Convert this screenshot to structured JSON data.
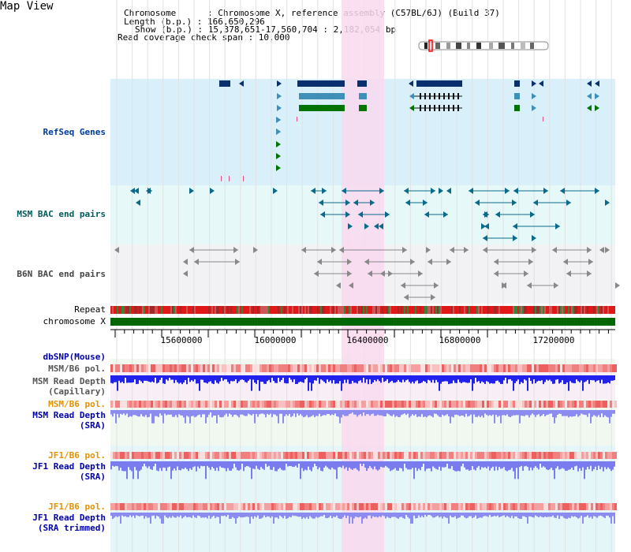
{
  "title": "Map View",
  "header": {
    "chromosome_line": "Chromosome      : Chromosome X, reference assembly (C57BL/6J) (Build 37)",
    "length_line": "Length (b.p.) : 166,650,296",
    "show_line": "Show (b.p.) : 15,378,651-17,560,704 : 2,182,054 bp",
    "span_line": "Read coverage check span : 10,000"
  },
  "tracks": {
    "refseq": "RefSeq Genes",
    "msm_bac": "MSM BAC end pairs",
    "b6n_bac": "B6N BAC end pairs",
    "repeat": "Repeat",
    "chromosome": "chromosome X",
    "dbsnp": "dbSNP(Mouse)",
    "msm_pol_1": "MSM/B6 pol.",
    "msm_depth_cap": "MSM Read Depth\n(Capillary)",
    "msm_pol_2": "MSM/B6 pol.",
    "msm_depth_sra": "MSM Read Depth\n(SRA)",
    "jf1_pol_1": "JF1/B6 pol.",
    "jf1_depth_sra": "JF1 Read Depth\n(SRA)",
    "jf1_pol_2": "JF1/B6 pol.",
    "jf1_depth_trim": "JF1 Read Depth\n(SRA trimmed)"
  },
  "axis": {
    "ticks": [
      "15600000",
      "16000000",
      "16400000",
      "16800000",
      "17200000"
    ]
  },
  "colors": {
    "refseq_bg": "#d9effa",
    "bac_bg": "#e6f8f8",
    "b6n_bg": "#f2f2f4",
    "highlight": "#f9d9ef",
    "chromosome": "#006600",
    "gene_dark": "#0a2f6e",
    "gene_mid": "#3f8fb8",
    "gene_green": "#007300",
    "depth_dark": "#1a1ae6",
    "depth_light": "#8c8cf0"
  }
}
